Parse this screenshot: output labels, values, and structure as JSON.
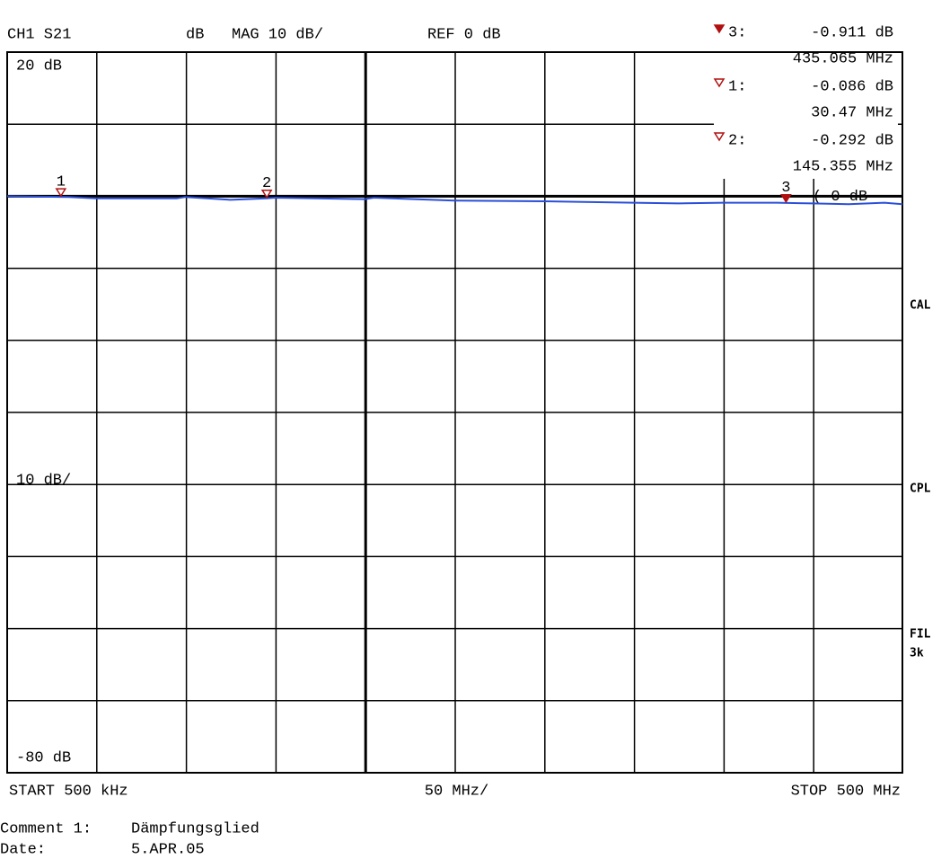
{
  "chart_data": {
    "type": "line",
    "header": {
      "channel": "CH1 S21",
      "format_unit": "dB",
      "format": "MAG 10 dB/",
      "reference": "REF 0 dB"
    },
    "x": [
      0.5,
      35,
      50,
      95,
      100,
      125,
      145,
      150,
      200,
      205,
      250,
      300,
      350,
      375,
      400,
      430,
      450,
      470,
      490,
      500
    ],
    "series": [
      {
        "color": "#2a4fd8",
        "values": [
          0,
          -0.1,
          -0.3,
          -0.3,
          -0.1,
          -0.5,
          -0.3,
          -0.2,
          -0.4,
          -0.2,
          -0.6,
          -0.7,
          -0.9,
          -1.0,
          -0.9,
          -0.9,
          -1.0,
          -1.1,
          -0.9,
          -1.1
        ]
      }
    ],
    "xlim": [
      0.5,
      500
    ],
    "ylim": [
      -80,
      20
    ],
    "xticks": [
      {
        "value": 0.5,
        "label": "START 500 kHz"
      },
      {
        "value": 500,
        "label": "STOP 500 MHz"
      }
    ],
    "yticks": [
      {
        "value": 20,
        "label": "20 dB"
      },
      {
        "value": -80,
        "label": "-80 dB"
      }
    ],
    "x_division": {
      "value": 50,
      "label": "50 MHz/"
    },
    "y_division": {
      "value": 10,
      "label": "10 dB/"
    },
    "reference_line": {
      "value": 0,
      "label": "( 0 dB"
    },
    "markers": [
      {
        "label": "3",
        "readout_label": "3:",
        "x": 435.065,
        "y": -0.911,
        "x_label": "435.065 MHz",
        "y_label": "-0.911 dB",
        "active": true
      },
      {
        "label": "1",
        "readout_label": "1:",
        "x": 30.47,
        "y": -0.086,
        "x_label": "30.47 MHz",
        "y_label": "-0.086 dB",
        "active": false
      },
      {
        "label": "2",
        "readout_label": "2:",
        "x": 145.355,
        "y": -0.292,
        "x_label": "145.355 MHz",
        "y_label": "-0.292 dB",
        "active": false
      }
    ],
    "marker_color": "#b01010",
    "status": [
      "CAL",
      "CPL",
      "FIL",
      "3k"
    ],
    "status_color": "#10b010",
    "grid": true
  },
  "footer": {
    "comment": [
      "Comment 1:",
      "Dämpfungsglied"
    ],
    "date": [
      "Date:",
      "5.APR.05"
    ]
  }
}
